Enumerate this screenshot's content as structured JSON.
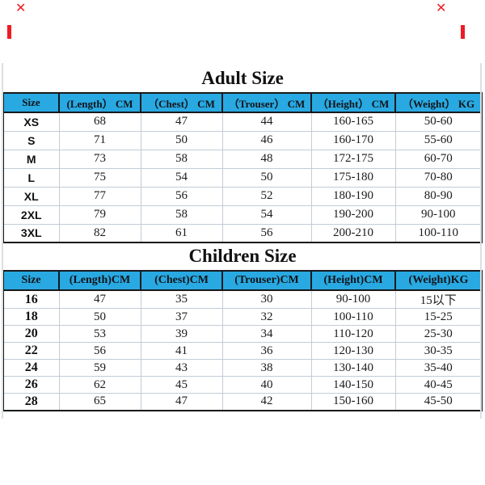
{
  "colors": {
    "header_bg": "#29a9e2",
    "table_border": "#17191b",
    "grid_line": "#c3ccd5",
    "watermark_red": "#ee1c24",
    "background": "#ffffff"
  },
  "watermarks": {
    "top_left_cross": "✕",
    "top_right_cross": "✕"
  },
  "adult": {
    "title": "Adult Size",
    "headers": [
      "Size",
      "(Length） CM",
      "（Chest） CM",
      "（Trouser） CM",
      "（Height） CM",
      "（Weight） KG"
    ],
    "rows": [
      [
        "XS",
        "68",
        "47",
        "44",
        "160-165",
        "50-60"
      ],
      [
        "S",
        "71",
        "50",
        "46",
        "160-170",
        "55-60"
      ],
      [
        "M",
        "73",
        "58",
        "48",
        "172-175",
        "60-70"
      ],
      [
        "L",
        "75",
        "54",
        "50",
        "175-180",
        "70-80"
      ],
      [
        "XL",
        "77",
        "56",
        "52",
        "180-190",
        "80-90"
      ],
      [
        "2XL",
        "79",
        "58",
        "54",
        "190-200",
        "90-100"
      ],
      [
        "3XL",
        "82",
        "61",
        "56",
        "200-210",
        "100-110"
      ]
    ]
  },
  "children": {
    "title": "Children Size",
    "headers": [
      "Size",
      "(Length)CM",
      "(Chest)CM",
      "(Trouser)CM",
      "(Height)CM",
      "(Weight)KG"
    ],
    "rows": [
      [
        "16",
        "47",
        "35",
        "30",
        "90-100",
        "15以下"
      ],
      [
        "18",
        "50",
        "37",
        "32",
        "100-110",
        "15-25"
      ],
      [
        "20",
        "53",
        "39",
        "34",
        "110-120",
        "25-30"
      ],
      [
        "22",
        "56",
        "41",
        "36",
        "120-130",
        "30-35"
      ],
      [
        "24",
        "59",
        "43",
        "38",
        "130-140",
        "35-40"
      ],
      [
        "26",
        "62",
        "45",
        "40",
        "140-150",
        "40-45"
      ],
      [
        "28",
        "65",
        "47",
        "42",
        "150-160",
        "45-50"
      ]
    ]
  }
}
